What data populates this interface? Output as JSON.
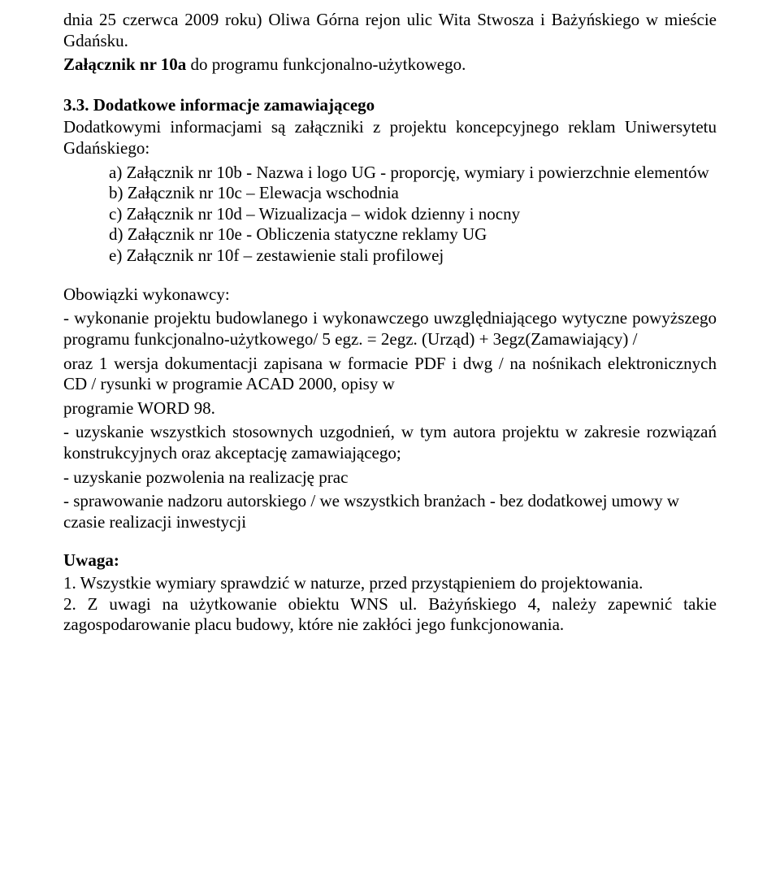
{
  "intro": {
    "line1": "dnia 25 czerwca 2009 roku) Oliwa Górna rejon ulic Wita Stwosza i Bażyńskiego w mieście Gdańsku.",
    "line2_prefix": "Załącznik nr 10a",
    "line2_rest": " do programu funkcjonalno-użytkowego."
  },
  "section": {
    "number": "3.3. Dodatkowe informacje zamawiającego",
    "lead": "Dodatkowymi informacjami są załączniki z projektu koncepcyjnego reklam Uniwersytetu Gdańskiego:",
    "items": [
      "a)  Załącznik nr 10b - Nazwa i logo UG - proporcję, wymiary i powierzchnie elementów",
      "b)  Załącznik nr 10c – Elewacja wschodnia",
      "c)  Załącznik nr 10d – Wizualizacja – widok dzienny i nocny",
      "d)  Załącznik nr 10e - Obliczenia statyczne reklamy UG",
      "e)  Załącznik nr 10f – zestawienie stali profilowej"
    ]
  },
  "obow": {
    "heading": "Obowiązki wykonawcy:",
    "p1": "- wykonanie projektu budowlanego i wykonawczego uwzględniającego wytyczne powyższego programu funkcjonalno-użytkowego/ 5 egz. = 2egz.  (Urząd) + 3egz(Zamawiający) /",
    "p2": "oraz 1 wersja dokumentacji zapisana w formacie PDF  i dwg / na nośnikach elektronicznych CD / rysunki w programie ACAD 2000, opisy w",
    "p3": "programie WORD 98.",
    "p4": "- uzyskanie wszystkich stosownych uzgodnień, w tym autora projektu w zakresie rozwiązań konstrukcyjnych oraz akceptację  zamawiającego;",
    "p5": "- uzyskanie pozwolenia na realizację prac",
    "p6": "- sprawowanie nadzoru autorskiego / we wszystkich branżach - bez dodatkowej umowy  w czasie realizacji inwestycji"
  },
  "uwaga": {
    "heading": "Uwaga:",
    "n1": "1. Wszystkie wymiary sprawdzić w naturze, przed przystąpieniem do projektowania.",
    "n2": "2. Z uwagi na użytkowanie obiektu WNS ul. Bażyńskiego 4, należy zapewnić takie zagospodarowanie placu budowy, które nie zakłóci jego funkcjonowania."
  }
}
